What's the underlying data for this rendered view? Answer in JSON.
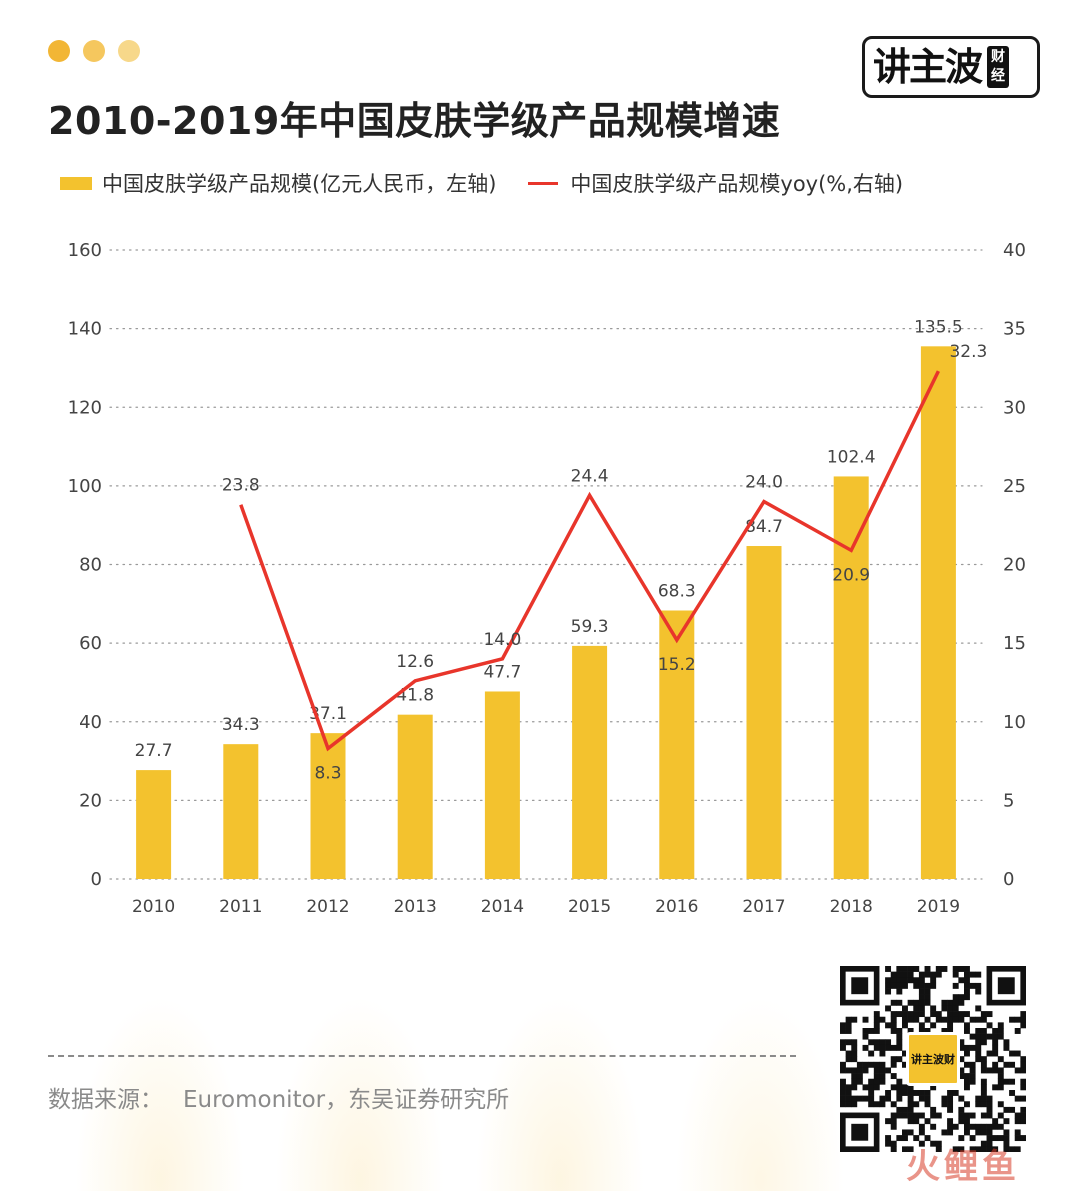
{
  "header": {
    "title": "2010-2019年中国皮肤学级产品规模增速",
    "dot_colors": [
      "#f2b635",
      "#f5c75e",
      "#f7d88a"
    ],
    "logo_main": "讲主波",
    "logo_side": "财经"
  },
  "colors": {
    "bar": "#f3c22e",
    "line": "#e8352b",
    "grid": "#9a9a9a",
    "text": "#444444"
  },
  "chart_data": {
    "type": "bar+line",
    "categories": [
      "2010",
      "2011",
      "2012",
      "2013",
      "2014",
      "2015",
      "2016",
      "2017",
      "2018",
      "2019"
    ],
    "series": [
      {
        "name": "中国皮肤学级产品规模(亿元人民币，左轴)",
        "type": "bar",
        "axis": "left",
        "values": [
          27.7,
          34.3,
          37.1,
          41.8,
          47.7,
          59.3,
          68.3,
          84.7,
          102.4,
          135.5
        ],
        "labels": [
          "27.7",
          "34.3",
          "37.1",
          "41.8",
          "47.7",
          "59.3",
          "68.3",
          "84.7",
          "102.4",
          "135.5"
        ]
      },
      {
        "name": "中国皮肤学级产品规模yoy(%,右轴)",
        "type": "line",
        "axis": "right",
        "values": [
          null,
          23.8,
          8.3,
          12.6,
          14.0,
          24.4,
          15.2,
          24.0,
          20.9,
          32.3
        ],
        "labels": [
          null,
          "23.8",
          "8.3",
          "12.6",
          "14.0",
          "24.4",
          "15.2",
          "24.0",
          "20.9",
          "32.3"
        ]
      }
    ],
    "left_axis": {
      "min": 0,
      "max": 160,
      "ticks": [
        "0",
        "20",
        "40",
        "60",
        "80",
        "100",
        "120",
        "140",
        "160"
      ]
    },
    "right_axis": {
      "min": 0,
      "max": 40,
      "ticks": [
        "0",
        "5",
        "10",
        "15",
        "20",
        "25",
        "30",
        "35",
        "40"
      ]
    },
    "grid": true,
    "legend_position": "top"
  },
  "footer": {
    "source_label": "数据来源：",
    "source_value": "Euromonitor，东吴证券研究所",
    "qr_badge": "讲主波财",
    "watermark": "火鲤鱼"
  }
}
